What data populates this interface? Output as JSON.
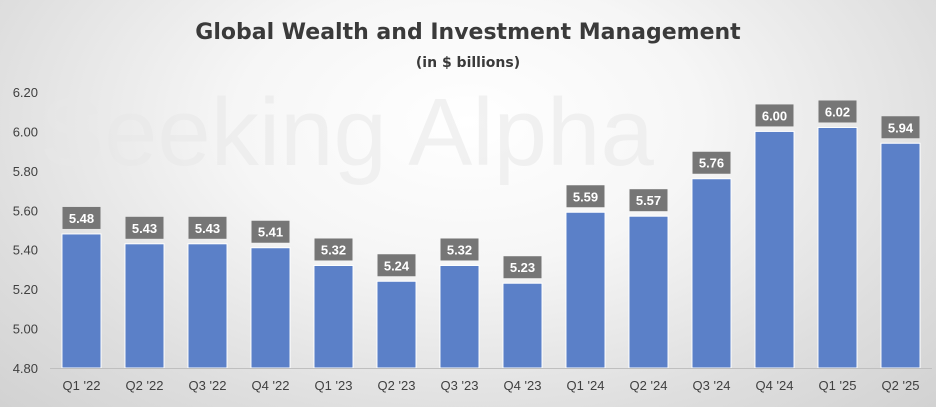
{
  "chart_data": {
    "type": "bar",
    "title": "Global Wealth and Investment Management",
    "subtitle": "(in $ billions)",
    "watermark": "Seeking Alpha",
    "categories": [
      "Q1 '22",
      "Q2 '22",
      "Q3 '22",
      "Q4 '22",
      "Q1 '23",
      "Q2 '23",
      "Q3 '23",
      "Q4 '23",
      "Q1 '24",
      "Q2 '24",
      "Q3 '24",
      "Q4 '24",
      "Q1 '25",
      "Q2 '25"
    ],
    "values": [
      5.48,
      5.43,
      5.43,
      5.41,
      5.32,
      5.24,
      5.32,
      5.23,
      5.59,
      5.57,
      5.76,
      6.0,
      6.02,
      5.94
    ],
    "data_labels": [
      "5.48",
      "5.43",
      "5.43",
      "5.41",
      "5.32",
      "5.24",
      "5.32",
      "5.23",
      "5.59",
      "5.57",
      "5.76",
      "6.00",
      "6.02",
      "5.94"
    ],
    "y_ticks": [
      "4.80",
      "5.00",
      "5.20",
      "5.40",
      "5.60",
      "5.80",
      "6.00",
      "6.20"
    ],
    "ylim": [
      4.8,
      6.2
    ],
    "xlabel": "",
    "ylabel": "",
    "grid": false,
    "bar_color": "#5b80c8"
  }
}
